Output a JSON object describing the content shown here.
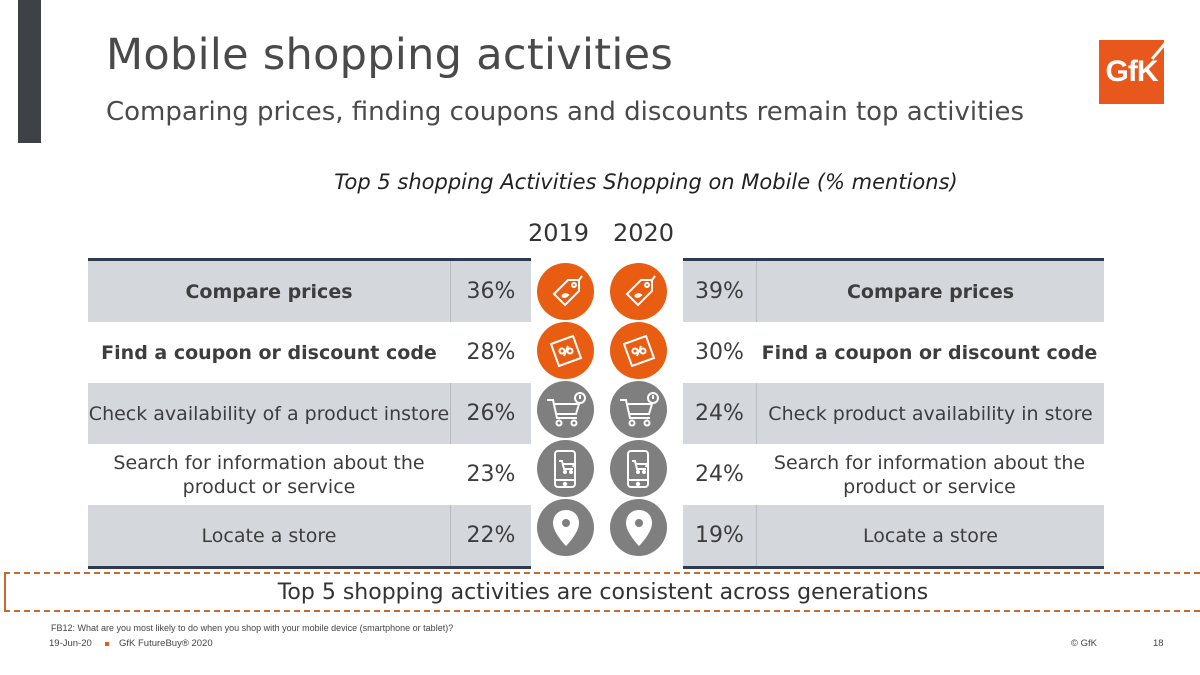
{
  "slide": {
    "title": "Mobile shopping activities",
    "subtitle": "Comparing prices, finding coupons and discounts remain top activities",
    "logo_text": "GfK",
    "chart_title": "Top 5 shopping Activities Shopping on Mobile (% mentions)",
    "callout": "Top 5 shopping activities are consistent across generations",
    "footnote": "FB12: What are you most likely to do when you shop with your mobile device (smartphone or tablet)?",
    "footer_date": "19-Jun-20",
    "footer_brand": "GfK FutureBuy® 2020",
    "footer_copyright": "© GfK",
    "page_number": "18"
  },
  "colors": {
    "accent_orange": "#e85d12",
    "icon_grey": "#7f7f7f",
    "row_shade": "#d4d7dc",
    "rule_navy": "#2e3a4f"
  },
  "chart_data": {
    "type": "table",
    "years": [
      "2019",
      "2020"
    ],
    "rows_2019": [
      {
        "label": "Compare prices",
        "value": "36%",
        "icon": "price-tag-icon"
      },
      {
        "label": "Find a coupon or discount code",
        "value": "28%",
        "icon": "coupon-percent-icon"
      },
      {
        "label": "Check availability of a product instore",
        "value": "26%",
        "icon": "shopping-cart-icon"
      },
      {
        "label": "Search for information about the product or service",
        "value": "23%",
        "icon": "mobile-cart-icon"
      },
      {
        "label": "Locate a store",
        "value": "22%",
        "icon": "map-pin-icon"
      }
    ],
    "rows_2020": [
      {
        "label": "Compare prices",
        "value": "39%",
        "icon": "price-tag-icon"
      },
      {
        "label": "Find a coupon or discount code",
        "value": "30%",
        "icon": "coupon-percent-icon"
      },
      {
        "label": "Check product availability in store",
        "value": "24%",
        "icon": "shopping-cart-icon"
      },
      {
        "label": "Search for information about the product or service",
        "value": "24%",
        "icon": "mobile-cart-icon"
      },
      {
        "label": "Locate a store",
        "value": "19%",
        "icon": "map-pin-icon"
      }
    ]
  }
}
